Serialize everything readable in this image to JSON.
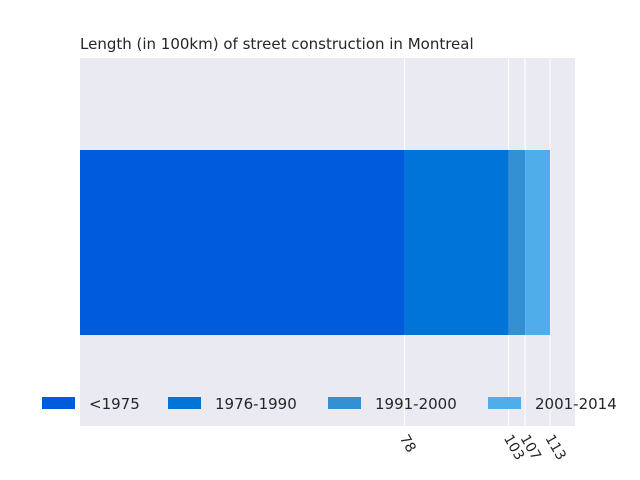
{
  "chart_data": {
    "type": "bar",
    "orientation": "horizontal",
    "stacked": true,
    "title": "Length (in 100km) of street construction in Montreal",
    "xlabel": "",
    "ylabel": "",
    "categories": [
      ""
    ],
    "series": [
      {
        "name": "<1975",
        "values": [
          78
        ],
        "color": "#005CDC"
      },
      {
        "name": "1976-1990",
        "values": [
          25
        ],
        "color": "#0074D9"
      },
      {
        "name": "1991-2000",
        "values": [
          4
        ],
        "color": "#3290D3"
      },
      {
        "name": "2001-2014",
        "values": [
          6
        ],
        "color": "#4FAEEA"
      }
    ],
    "xticks": [
      78,
      103,
      107,
      113
    ],
    "xlim": [
      0,
      119
    ],
    "grid": true,
    "legend_position": "bottom",
    "background": "#EAEAF2"
  }
}
